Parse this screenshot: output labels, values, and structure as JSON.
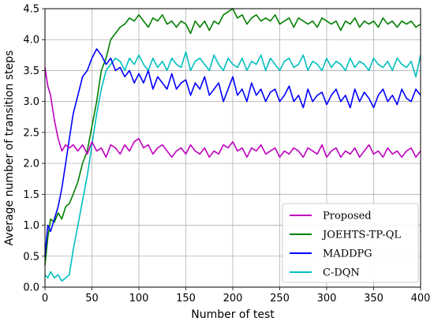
{
  "chart_data": {
    "type": "line",
    "title": "",
    "xlabel": "Number of test",
    "ylabel": "Average number of transition steps",
    "xlim": [
      0,
      400
    ],
    "ylim": [
      0,
      4.5
    ],
    "xticks": [
      0,
      50,
      100,
      150,
      200,
      250,
      300,
      350,
      400
    ],
    "yticks": [
      0.0,
      0.5,
      1.0,
      1.5,
      2.0,
      2.5,
      3.0,
      3.5,
      4.0,
      4.5
    ],
    "xtick_labels": [
      "0",
      "50",
      "100",
      "150",
      "200",
      "250",
      "300",
      "350",
      "400"
    ],
    "ytick_labels": [
      "0.0",
      "0.5",
      "1.0",
      "1.5",
      "2.0",
      "2.5",
      "3.0",
      "3.5",
      "4.0",
      "4.5"
    ],
    "grid": true,
    "legend_position": "bottom-right",
    "series": [
      {
        "name": "Proposed",
        "color": "#bf00bf",
        "x": [
          0,
          3,
          6,
          10,
          14,
          18,
          22,
          26,
          30,
          35,
          40,
          45,
          50,
          55,
          60,
          65,
          70,
          75,
          80,
          85,
          90,
          95,
          100,
          105,
          110,
          115,
          120,
          125,
          130,
          135,
          140,
          145,
          150,
          155,
          160,
          165,
          170,
          175,
          180,
          185,
          190,
          195,
          200,
          205,
          210,
          215,
          220,
          225,
          230,
          235,
          240,
          245,
          250,
          255,
          260,
          265,
          270,
          275,
          280,
          285,
          290,
          295,
          300,
          305,
          310,
          315,
          320,
          325,
          330,
          335,
          340,
          345,
          350,
          355,
          360,
          365,
          370,
          375,
          380,
          385,
          390,
          395,
          400
        ],
        "y": [
          3.55,
          3.25,
          3.1,
          2.7,
          2.4,
          2.2,
          2.3,
          2.25,
          2.3,
          2.2,
          2.3,
          2.15,
          2.35,
          2.2,
          2.25,
          2.1,
          2.3,
          2.25,
          2.15,
          2.3,
          2.2,
          2.35,
          2.4,
          2.25,
          2.3,
          2.15,
          2.25,
          2.3,
          2.2,
          2.1,
          2.2,
          2.25,
          2.15,
          2.3,
          2.2,
          2.15,
          2.25,
          2.1,
          2.2,
          2.15,
          2.3,
          2.25,
          2.35,
          2.2,
          2.25,
          2.1,
          2.25,
          2.2,
          2.3,
          2.15,
          2.2,
          2.25,
          2.1,
          2.2,
          2.15,
          2.25,
          2.2,
          2.1,
          2.25,
          2.2,
          2.15,
          2.3,
          2.1,
          2.2,
          2.25,
          2.1,
          2.2,
          2.15,
          2.25,
          2.1,
          2.2,
          2.3,
          2.15,
          2.2,
          2.1,
          2.25,
          2.15,
          2.2,
          2.1,
          2.2,
          2.25,
          2.1,
          2.2
        ]
      },
      {
        "name": "JOEHTS-TP-QL",
        "color": "#007f00",
        "x": [
          0,
          3,
          6,
          10,
          14,
          18,
          22,
          26,
          30,
          35,
          40,
          45,
          50,
          55,
          60,
          65,
          70,
          75,
          80,
          85,
          90,
          95,
          100,
          105,
          110,
          115,
          120,
          125,
          130,
          135,
          140,
          145,
          150,
          155,
          160,
          165,
          170,
          175,
          180,
          185,
          190,
          195,
          200,
          205,
          210,
          215,
          220,
          225,
          230,
          235,
          240,
          245,
          250,
          255,
          260,
          265,
          270,
          275,
          280,
          285,
          290,
          295,
          300,
          305,
          310,
          315,
          320,
          325,
          330,
          335,
          340,
          345,
          350,
          355,
          360,
          365,
          370,
          375,
          380,
          385,
          390,
          395,
          400
        ],
        "y": [
          0.35,
          0.8,
          1.1,
          1.05,
          1.2,
          1.1,
          1.3,
          1.35,
          1.5,
          1.7,
          2.0,
          2.2,
          2.6,
          3.0,
          3.5,
          3.7,
          4.0,
          4.1,
          4.2,
          4.25,
          4.35,
          4.3,
          4.4,
          4.3,
          4.2,
          4.35,
          4.3,
          4.4,
          4.25,
          4.3,
          4.2,
          4.3,
          4.25,
          4.1,
          4.3,
          4.2,
          4.3,
          4.15,
          4.3,
          4.25,
          4.4,
          4.45,
          4.5,
          4.35,
          4.4,
          4.25,
          4.35,
          4.4,
          4.3,
          4.35,
          4.3,
          4.4,
          4.25,
          4.3,
          4.35,
          4.2,
          4.35,
          4.3,
          4.25,
          4.3,
          4.2,
          4.35,
          4.3,
          4.25,
          4.3,
          4.15,
          4.3,
          4.25,
          4.35,
          4.2,
          4.3,
          4.25,
          4.3,
          4.2,
          4.35,
          4.25,
          4.3,
          4.2,
          4.3,
          4.25,
          4.3,
          4.2,
          4.25
        ]
      },
      {
        "name": "MADDPG",
        "color": "#0000ff",
        "x": [
          0,
          3,
          6,
          10,
          14,
          18,
          22,
          26,
          30,
          35,
          40,
          45,
          50,
          55,
          60,
          65,
          70,
          75,
          80,
          85,
          90,
          95,
          100,
          105,
          110,
          115,
          120,
          125,
          130,
          135,
          140,
          145,
          150,
          155,
          160,
          165,
          170,
          175,
          180,
          185,
          190,
          195,
          200,
          205,
          210,
          215,
          220,
          225,
          230,
          235,
          240,
          245,
          250,
          255,
          260,
          265,
          270,
          275,
          280,
          285,
          290,
          295,
          300,
          305,
          310,
          315,
          320,
          325,
          330,
          335,
          340,
          345,
          350,
          355,
          360,
          365,
          370,
          375,
          380,
          385,
          390,
          395,
          400
        ],
        "y": [
          0.5,
          1.0,
          0.9,
          1.1,
          1.3,
          1.6,
          2.0,
          2.4,
          2.8,
          3.1,
          3.4,
          3.5,
          3.7,
          3.85,
          3.75,
          3.6,
          3.7,
          3.5,
          3.55,
          3.4,
          3.5,
          3.3,
          3.45,
          3.3,
          3.5,
          3.2,
          3.4,
          3.3,
          3.2,
          3.45,
          3.2,
          3.3,
          3.35,
          3.1,
          3.3,
          3.2,
          3.4,
          3.1,
          3.2,
          3.3,
          3.0,
          3.2,
          3.4,
          3.1,
          3.2,
          3.0,
          3.3,
          3.1,
          3.2,
          3.0,
          3.15,
          3.2,
          3.0,
          3.1,
          3.25,
          3.0,
          3.1,
          2.9,
          3.2,
          3.0,
          3.1,
          3.15,
          2.95,
          3.1,
          3.2,
          3.0,
          3.1,
          2.9,
          3.2,
          3.0,
          3.15,
          3.05,
          2.9,
          3.1,
          3.2,
          3.0,
          3.1,
          2.95,
          3.2,
          3.05,
          3.0,
          3.2,
          3.1
        ]
      },
      {
        "name": "C-DQN",
        "color": "#00bfbf",
        "x": [
          0,
          3,
          6,
          10,
          14,
          18,
          22,
          26,
          30,
          35,
          40,
          45,
          50,
          55,
          60,
          65,
          70,
          75,
          80,
          85,
          90,
          95,
          100,
          105,
          110,
          115,
          120,
          125,
          130,
          135,
          140,
          145,
          150,
          155,
          160,
          165,
          170,
          175,
          180,
          185,
          190,
          195,
          200,
          205,
          210,
          215,
          220,
          225,
          230,
          235,
          240,
          245,
          250,
          255,
          260,
          265,
          270,
          275,
          280,
          285,
          290,
          295,
          300,
          305,
          310,
          315,
          320,
          325,
          330,
          335,
          340,
          345,
          350,
          355,
          360,
          365,
          370,
          375,
          380,
          385,
          390,
          395,
          400
        ],
        "y": [
          0.2,
          0.15,
          0.25,
          0.15,
          0.2,
          0.1,
          0.15,
          0.2,
          0.6,
          1.0,
          1.4,
          1.8,
          2.3,
          2.8,
          3.2,
          3.5,
          3.6,
          3.7,
          3.65,
          3.5,
          3.7,
          3.6,
          3.75,
          3.6,
          3.5,
          3.7,
          3.55,
          3.65,
          3.5,
          3.7,
          3.6,
          3.55,
          3.8,
          3.5,
          3.65,
          3.7,
          3.6,
          3.5,
          3.75,
          3.6,
          3.5,
          3.7,
          3.6,
          3.55,
          3.7,
          3.5,
          3.65,
          3.6,
          3.75,
          3.5,
          3.7,
          3.6,
          3.5,
          3.65,
          3.7,
          3.55,
          3.6,
          3.75,
          3.5,
          3.65,
          3.6,
          3.5,
          3.7,
          3.55,
          3.65,
          3.6,
          3.5,
          3.7,
          3.55,
          3.65,
          3.6,
          3.5,
          3.7,
          3.6,
          3.55,
          3.65,
          3.5,
          3.7,
          3.6,
          3.55,
          3.65,
          3.4,
          3.75
        ]
      }
    ]
  }
}
